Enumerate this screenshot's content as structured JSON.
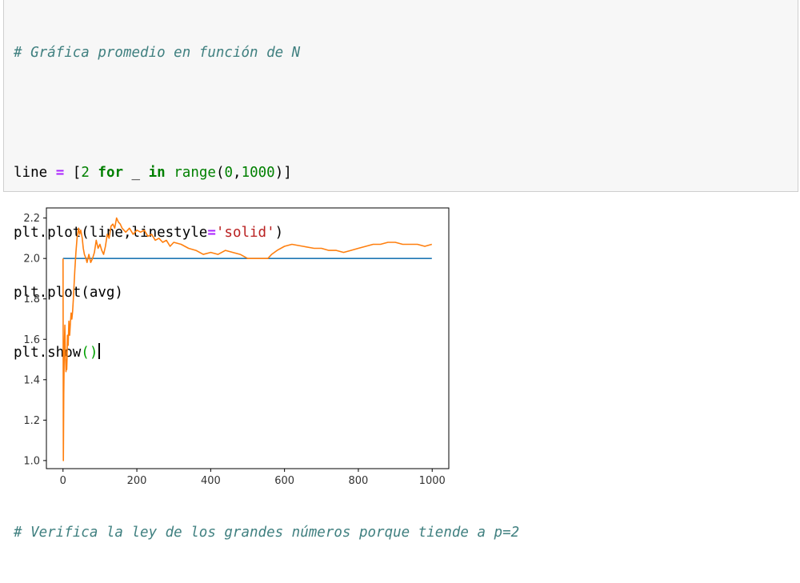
{
  "cell": {
    "comment1": "# Gráfica promedio en función de N",
    "code": {
      "line_var": "line",
      "line_eq": " = ",
      "line_open": "[",
      "line_num": "2",
      "line_for": "for",
      "line_underscore": " _ ",
      "line_in": "in",
      "line_range": "range",
      "line_args_open": "(",
      "line_arg0": "0",
      "line_comma": ",",
      "line_arg1": "1000",
      "line_close": ")]",
      "plot1_a": "plt.plot(line,linestyle",
      "plot1_eq": "=",
      "plot1_str": "'solid'",
      "plot1_close": ")",
      "plot2": "plt.plot(avg)",
      "show_a": "plt.show",
      "show_parens": "()"
    },
    "comment2": "# Verifica la ley de los grandes números porque tiende a p=2"
  },
  "chart_data": {
    "type": "line",
    "xlim": [
      -45,
      1045
    ],
    "ylim": [
      0.96,
      2.25
    ],
    "xticks": [
      0,
      200,
      400,
      600,
      800,
      1000
    ],
    "yticks": [
      1.0,
      1.2,
      1.4,
      1.6,
      1.8,
      2.0,
      2.2
    ],
    "ytick_labels": [
      "1.0",
      "1.2",
      "1.4",
      "1.6",
      "1.8",
      "2.0",
      "2.2"
    ],
    "series": [
      {
        "color": "#1f77b4",
        "x": [
          0,
          999
        ],
        "y": [
          2.0,
          2.0
        ]
      },
      {
        "color": "#ff7f0e",
        "x": [
          0,
          1,
          2,
          3,
          4,
          5,
          6,
          7,
          8,
          9,
          10,
          11,
          12,
          14,
          16,
          18,
          20,
          22,
          24,
          26,
          28,
          30,
          32,
          35,
          38,
          42,
          45,
          48,
          52,
          55,
          58,
          62,
          65,
          70,
          75,
          80,
          85,
          90,
          95,
          100,
          105,
          110,
          115,
          120,
          125,
          130,
          135,
          140,
          145,
          150,
          155,
          160,
          170,
          180,
          190,
          200,
          210,
          220,
          230,
          240,
          250,
          260,
          270,
          280,
          290,
          300,
          320,
          340,
          360,
          380,
          400,
          420,
          440,
          460,
          480,
          500,
          520,
          540,
          555,
          565,
          580,
          600,
          620,
          650,
          680,
          700,
          720,
          740,
          760,
          780,
          800,
          820,
          840,
          860,
          880,
          900,
          920,
          940,
          960,
          980,
          999
        ],
        "y": [
          2.0,
          1.0,
          1.33,
          1.5,
          1.6,
          1.67,
          1.57,
          1.5,
          1.44,
          1.5,
          1.45,
          1.5,
          1.62,
          1.57,
          1.69,
          1.62,
          1.68,
          1.73,
          1.7,
          1.74,
          1.8,
          1.87,
          1.94,
          2.03,
          2.1,
          2.15,
          2.12,
          2.14,
          2.1,
          2.05,
          2.02,
          2.0,
          1.98,
          2.02,
          1.98,
          2.0,
          2.03,
          2.09,
          2.05,
          2.07,
          2.04,
          2.02,
          2.06,
          2.12,
          2.1,
          2.16,
          2.17,
          2.15,
          2.2,
          2.18,
          2.17,
          2.15,
          2.13,
          2.15,
          2.12,
          2.14,
          2.13,
          2.14,
          2.11,
          2.12,
          2.09,
          2.1,
          2.08,
          2.09,
          2.06,
          2.08,
          2.07,
          2.05,
          2.04,
          2.02,
          2.03,
          2.02,
          2.04,
          2.03,
          2.02,
          2.0,
          2.0,
          2.0,
          2.0,
          2.02,
          2.04,
          2.06,
          2.07,
          2.06,
          2.05,
          2.05,
          2.04,
          2.04,
          2.03,
          2.04,
          2.05,
          2.06,
          2.07,
          2.07,
          2.08,
          2.08,
          2.07,
          2.07,
          2.07,
          2.06,
          2.07
        ]
      }
    ]
  }
}
